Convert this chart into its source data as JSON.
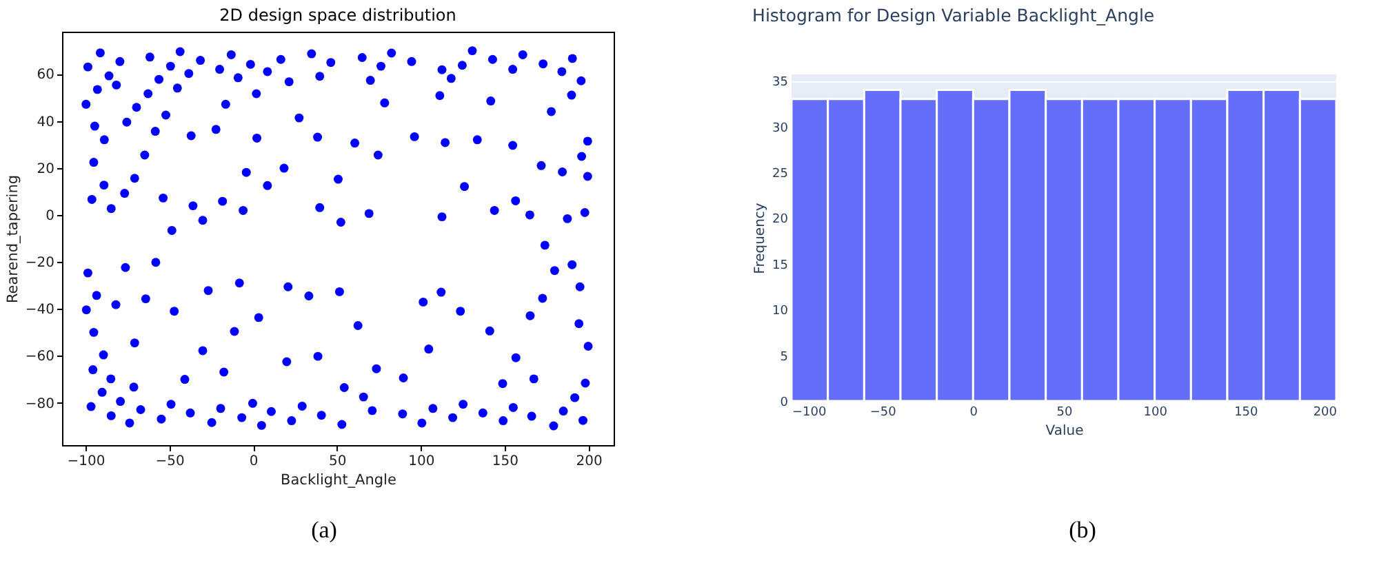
{
  "chart_data": [
    {
      "type": "scatter",
      "title": "2D design space distribution",
      "xlabel": "Backlight_Angle",
      "ylabel": "Rearend_tapering",
      "marker": "circle",
      "grid": false,
      "xlim": [
        -114,
        215
      ],
      "ylim": [
        -98,
        78
      ],
      "xticks": [
        -100,
        -50,
        0,
        50,
        100,
        150,
        200
      ],
      "yticks": [
        -80,
        -60,
        -40,
        -20,
        0,
        20,
        40,
        60
      ],
      "annotations": [
        "(a)"
      ],
      "series": [
        {
          "color": "#0000ff",
          "x": [
            -98.6,
            -91.2,
            -79.5,
            -86,
            -92.9,
            -99.7,
            -81.6,
            -61.6,
            -43.6,
            -49.3,
            -56.2,
            -62.7,
            -69.6,
            -31.5,
            -38.4,
            -45.2,
            -13.1,
            -20,
            -9,
            -1.6,
            16.5,
            34.8,
            46.3,
            39.7,
            21.4,
            8.5,
            65,
            82.5,
            76.2,
            69.9,
            94.5,
            112.6,
            130.7,
            124.7,
            118.1,
            142.8,
            160.8,
            154.8,
            172.9,
            190.4,
            184.1,
            195.6,
            189.9,
            177.8,
            -94.5,
            -88.8,
            -95.1,
            -89,
            -96.2,
            -84.7,
            -76.7,
            -70.7,
            -64.7,
            -75.4,
            -58.4,
            -52.1,
            -37,
            -22.2,
            -16.4,
            1.9,
            2.2,
            -4.1,
            -18.3,
            -35.9,
            -53.7,
            -48.5,
            -30.1,
            -6,
            8.5,
            18.4,
            27.4,
            38.4,
            50.7,
            60.6,
            78.4,
            74.5,
            69.1,
            52.3,
            39.7,
            96.2,
            111.3,
            114.5,
            126,
            133.7,
            141.7,
            154.8,
            156.5,
            171.8,
            184.4,
            195.9,
            199.5,
            199.5,
            197.8,
            187.4,
            174,
            165,
            143.9,
            112.6,
            -98.6,
            -93.4,
            -99.5,
            -95.1,
            -89.3,
            -95.6,
            -90.1,
            -96.7,
            -84.7,
            -73.7,
            -79.2,
            -84.9,
            -71.2,
            -67.1,
            -54.8,
            -49,
            -37.5,
            -24.7,
            -19.4,
            -6.8,
            5,
            -0.3,
            10.8,
            22.9,
            29.2,
            40.7,
            52.9,
            54.3,
            65.8,
            71,
            89.1,
            100.6,
            107.2,
            119,
            125.2,
            137,
            149.1,
            155.1,
            166.1,
            179.2,
            185,
            196.7,
            191.8,
            198.1,
            199.8,
            194.3,
            194.9,
            190.2,
            179.8,
            172.6,
            165.2,
            156.7,
            141.1,
            123.6,
            112.1,
            101.4,
            104.7,
            89.6,
            73.5,
            62.5,
            51.5,
            33.2,
            20.8,
            20,
            3.3,
            -8.2,
            -11.2,
            -17.5,
            -30.1,
            -40.8,
            -47.1,
            -64.1,
            -70.7,
            -81.9,
            -76.2,
            -58.1,
            -26.8,
            38.6,
            148.8,
            167.4
          ],
          "values": [
            63,
            69,
            65.3,
            59.2,
            53.4,
            47.1,
            55.3,
            67.2,
            69.5,
            63.3,
            57.7,
            51.6,
            45.8,
            65.8,
            60.2,
            54,
            68.2,
            62,
            58.4,
            64.1,
            66.2,
            68.6,
            64.9,
            59,
            56.7,
            61,
            67,
            68.9,
            63.3,
            57.3,
            65.3,
            61.8,
            69.9,
            63.7,
            58.1,
            66.2,
            68.2,
            62,
            64.3,
            66.6,
            61,
            57.1,
            51,
            44,
            37.8,
            32,
            22.4,
            12.7,
            6.6,
            2.7,
            9.2,
            15.6,
            25.5,
            39.5,
            35.6,
            42.5,
            33.7,
            36.4,
            47.1,
            51.6,
            32.7,
            18.1,
            5.8,
            3.9,
            7.2,
            -6.6,
            -2.3,
            1.9,
            12.5,
            19.9,
            41.3,
            33.1,
            15.2,
            30.6,
            47.7,
            25.5,
            0.6,
            -3.1,
            3.1,
            33.3,
            50.8,
            30.8,
            12.1,
            32,
            48.5,
            29.6,
            6,
            21,
            18.3,
            24.9,
            31.4,
            16.4,
            1,
            -1.6,
            -12.9,
            0,
            1.9,
            -0.8,
            -24.7,
            -34.3,
            -40.4,
            -50,
            -59.6,
            -65.9,
            -75.5,
            -81.6,
            -85.5,
            -88.6,
            -79.4,
            -69.8,
            -73.3,
            -82.9,
            -86.9,
            -80.6,
            -84.3,
            -88.4,
            -82.4,
            -86.3,
            -89.6,
            -80.2,
            -83.7,
            -87.6,
            -81.4,
            -85.3,
            -89.2,
            -73.5,
            -77.5,
            -83.3,
            -84.7,
            -88.6,
            -82.4,
            -86.3,
            -80.6,
            -84.3,
            -87.6,
            -82,
            -85.7,
            -89.8,
            -83.5,
            -87.5,
            -77.8,
            -71.6,
            -55.9,
            -46.3,
            -30.6,
            -21.2,
            -23.7,
            -35.5,
            -42.9,
            -60.8,
            -49.4,
            -41,
            -32.9,
            -37.1,
            -57.1,
            -69.4,
            -65.5,
            -47.1,
            -32.7,
            -34.5,
            -30.6,
            -62.5,
            -43.7,
            -29,
            -49.6,
            -66.9,
            -57.8,
            -70,
            -41,
            -35.7,
            -54.5,
            -38.2,
            -22.4,
            -20.2,
            -32.2,
            -60.2,
            -71.8,
            -69.8
          ]
        }
      ]
    },
    {
      "type": "histogram",
      "title": "Histogram for Design Variable Backlight_Angle",
      "xlabel": "Value",
      "ylabel": "Frequency",
      "grid": "y",
      "xlim": [
        -100,
        200
      ],
      "ylim": [
        0,
        35.7
      ],
      "xticks": [
        -100,
        -50,
        0,
        50,
        100,
        150,
        200
      ],
      "yticks": [
        0,
        5,
        10,
        15,
        20,
        25,
        30,
        35
      ],
      "annotations": [
        "(b)"
      ],
      "color": "#636efa",
      "bins": [
        -100,
        -80,
        -60,
        -40,
        -20,
        0,
        20,
        40,
        60,
        80,
        100,
        120,
        140,
        160,
        180,
        200
      ],
      "values": [
        33,
        33,
        34,
        33,
        34,
        33,
        34,
        33,
        33,
        33,
        33,
        33,
        34,
        34,
        33
      ]
    }
  ]
}
